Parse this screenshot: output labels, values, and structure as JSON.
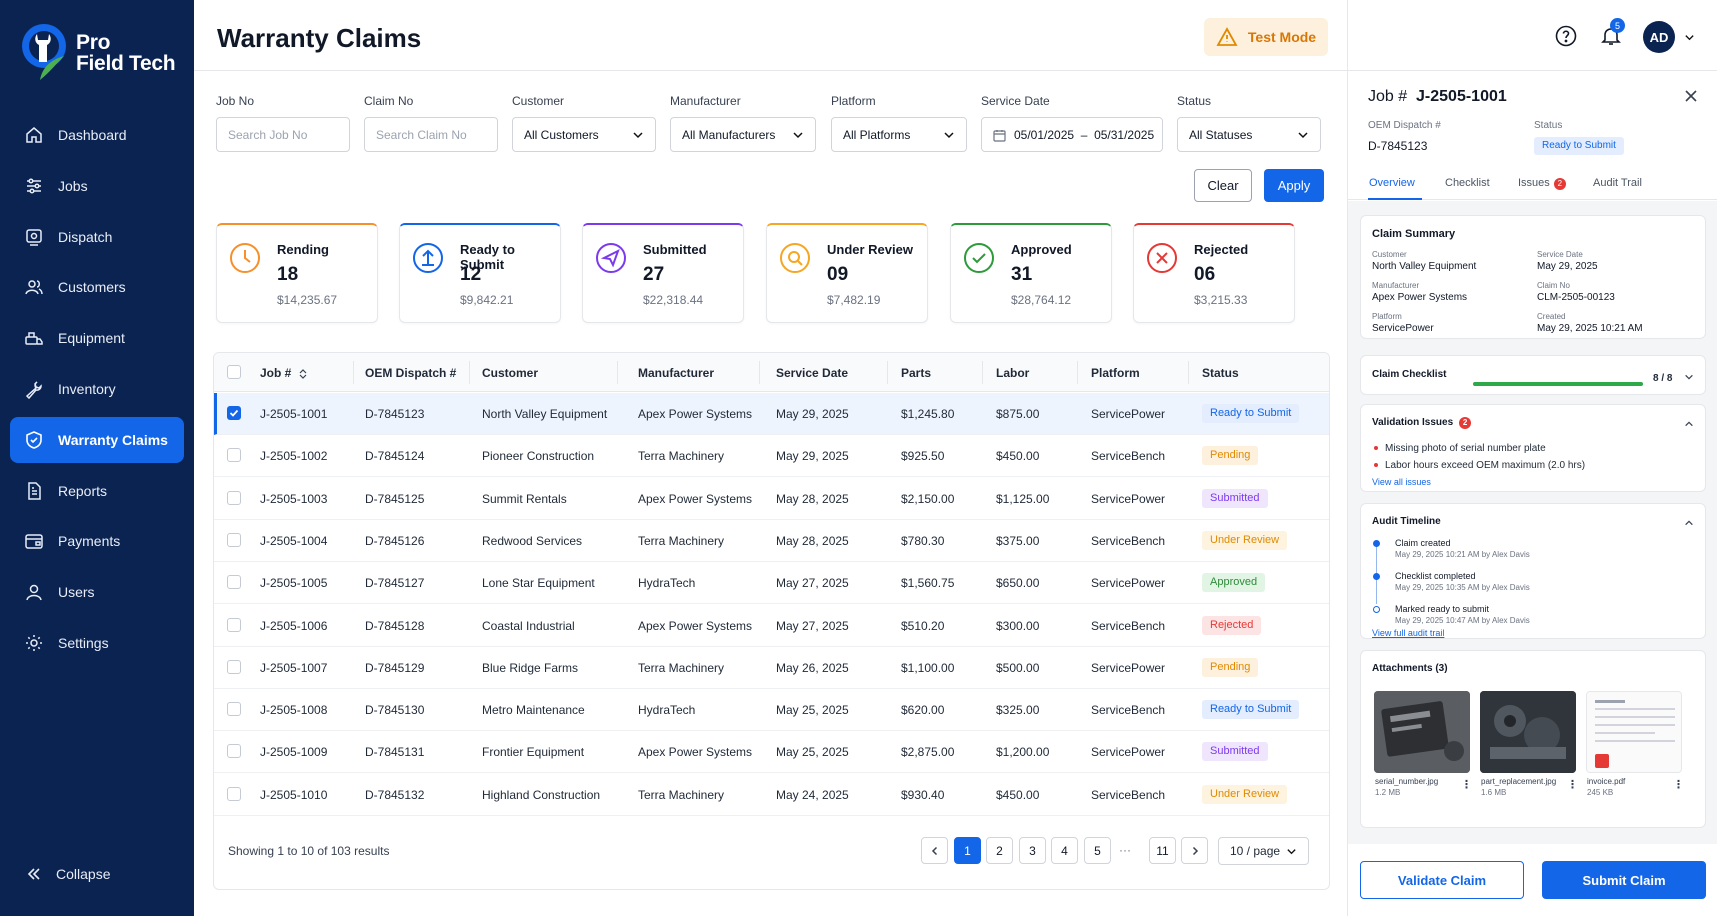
{
  "brand": {
    "line1": "Pro",
    "line2": "Field Tech"
  },
  "sidebar": {
    "items": [
      {
        "label": "Dashboard",
        "icon": "home-icon"
      },
      {
        "label": "Jobs",
        "icon": "sliders-icon"
      },
      {
        "label": "Dispatch",
        "icon": "dispatch-icon"
      },
      {
        "label": "Customers",
        "icon": "customers-icon"
      },
      {
        "label": "Equipment",
        "icon": "equipment-icon"
      },
      {
        "label": "Inventory",
        "icon": "wrench-icon"
      },
      {
        "label": "Warranty Claims",
        "icon": "shield-check-icon",
        "active": true
      },
      {
        "label": "Reports",
        "icon": "report-icon"
      },
      {
        "label": "Payments",
        "icon": "wallet-icon"
      },
      {
        "label": "Users",
        "icon": "user-icon"
      },
      {
        "label": "Settings",
        "icon": "gear-icon"
      }
    ],
    "collapse_label": "Collapse"
  },
  "header": {
    "title": "Warranty Claims",
    "test_mode": "Test Mode"
  },
  "filters": {
    "job_no": {
      "label": "Job No",
      "placeholder": "Search Job No"
    },
    "claim_no": {
      "label": "Claim No",
      "placeholder": "Search Claim No"
    },
    "customer": {
      "label": "Customer",
      "value": "All Customers"
    },
    "manufacturer": {
      "label": "Manufacturer",
      "value": "All Manufacturers"
    },
    "platform": {
      "label": "Platform",
      "value": "All Platforms"
    },
    "service_date": {
      "label": "Service Date",
      "value": "05/01/2025  –  05/31/2025"
    },
    "status": {
      "label": "Status",
      "value": "All Statuses"
    },
    "clear_label": "Clear",
    "apply_label": "Apply"
  },
  "stats": [
    {
      "label": "Rending",
      "count": "18",
      "amount": "$14,235.67",
      "color": "#f5902b",
      "icon": "clock-icon"
    },
    {
      "label": "Ready to Submit",
      "count": "12",
      "amount": "$9,842.21",
      "color": "#1366e8",
      "icon": "upload-icon"
    },
    {
      "label": "Submitted",
      "count": "27",
      "amount": "$22,318.44",
      "color": "#7c3aed",
      "icon": "send-icon"
    },
    {
      "label": "Under Review",
      "count": "09",
      "amount": "$7,482.19",
      "color": "#f5a623",
      "icon": "search-icon"
    },
    {
      "label": "Approved",
      "count": "31",
      "amount": "$28,764.12",
      "color": "#2e9b3a",
      "icon": "check-circle-icon"
    },
    {
      "label": "Rejected",
      "count": "06",
      "amount": "$3,215.33",
      "color": "#e53935",
      "icon": "x-circle-icon"
    }
  ],
  "table": {
    "headers": {
      "job": "Job #",
      "oem": "OEM Dispatch #",
      "customer": "Customer",
      "manufacturer": "Manufacturer",
      "service_date": "Service Date",
      "parts": "Parts",
      "labor": "Labor",
      "platform": "Platform",
      "status": "Status"
    },
    "rows": [
      {
        "job": "J-2505-1001",
        "oem": "D-7845123",
        "customer": "North Valley Equipment",
        "manufacturer": "Apex Power Systems",
        "date": "May 29, 2025",
        "parts": "$1,245.80",
        "labor": "$875.00",
        "platform": "ServicePower",
        "status": "Ready to Submit",
        "selected": true
      },
      {
        "job": "J-2505-1002",
        "oem": "D-7845124",
        "customer": "Pioneer Construction",
        "manufacturer": "Terra Machinery",
        "date": "May 29, 2025",
        "parts": "$925.50",
        "labor": "$450.00",
        "platform": "ServiceBench",
        "status": "Pending"
      },
      {
        "job": "J-2505-1003",
        "oem": "D-7845125",
        "customer": "Summit Rentals",
        "manufacturer": "Apex Power Systems",
        "date": "May 28, 2025",
        "parts": "$2,150.00",
        "labor": "$1,125.00",
        "platform": "ServicePower",
        "status": "Submitted"
      },
      {
        "job": "J-2505-1004",
        "oem": "D-7845126",
        "customer": "Redwood Services",
        "manufacturer": "Terra Machinery",
        "date": "May 28, 2025",
        "parts": "$780.30",
        "labor": "$375.00",
        "platform": "ServiceBench",
        "status": "Under Review"
      },
      {
        "job": "J-2505-1005",
        "oem": "D-7845127",
        "customer": "Lone Star Equipment",
        "manufacturer": "HydraTech",
        "date": "May 27, 2025",
        "parts": "$1,560.75",
        "labor": "$650.00",
        "platform": "ServicePower",
        "status": "Approved"
      },
      {
        "job": "J-2505-1006",
        "oem": "D-7845128",
        "customer": "Coastal Industrial",
        "manufacturer": "Apex Power Systems",
        "date": "May 27, 2025",
        "parts": "$510.20",
        "labor": "$300.00",
        "platform": "ServiceBench",
        "status": "Rejected"
      },
      {
        "job": "J-2505-1007",
        "oem": "D-7845129",
        "customer": "Blue Ridge Farms",
        "manufacturer": "Terra Machinery",
        "date": "May 26, 2025",
        "parts": "$1,100.00",
        "labor": "$500.00",
        "platform": "ServicePower",
        "status": "Pending"
      },
      {
        "job": "J-2505-1008",
        "oem": "D-7845130",
        "customer": "Metro Maintenance",
        "manufacturer": "HydraTech",
        "date": "May 25, 2025",
        "parts": "$620.00",
        "labor": "$325.00",
        "platform": "ServiceBench",
        "status": "Ready to Submit"
      },
      {
        "job": "J-2505-1009",
        "oem": "D-7845131",
        "customer": "Frontier Equipment",
        "manufacturer": "Apex Power Systems",
        "date": "May 25, 2025",
        "parts": "$2,875.00",
        "labor": "$1,200.00",
        "platform": "ServicePower",
        "status": "Submitted"
      },
      {
        "job": "J-2505-1010",
        "oem": "D-7845132",
        "customer": "Highland Construction",
        "manufacturer": "Terra Machinery",
        "date": "May 24, 2025",
        "parts": "$930.40",
        "labor": "$450.00",
        "platform": "ServiceBench",
        "status": "Under Review"
      }
    ],
    "status_styles": {
      "Ready to Submit": {
        "bg": "#e3edfd",
        "fg": "#1366e8"
      },
      "Pending": {
        "bg": "#fdf0dc",
        "fg": "#e08a00"
      },
      "Submitted": {
        "bg": "#efe6fd",
        "fg": "#7c3aed"
      },
      "Under Review": {
        "bg": "#fdf3df",
        "fg": "#e08a00"
      },
      "Approved": {
        "bg": "#e2f5e4",
        "fg": "#2e8b3a"
      },
      "Rejected": {
        "bg": "#fde4e4",
        "fg": "#e53935"
      }
    },
    "footer_text": "Showing 1 to 10 of 103 results",
    "pages": [
      "1",
      "2",
      "3",
      "4",
      "5"
    ],
    "ellipsis": "···",
    "last_page": "11",
    "per_page": "10 / page"
  },
  "topbar": {
    "help_icon": "help-icon",
    "bell_icon": "bell-icon",
    "notif_count": "5",
    "avatar_initials": "AD"
  },
  "detail": {
    "title_prefix": "Job #",
    "title_value": "J-2505-1001",
    "oem_label": "OEM Dispatch #",
    "oem_value": "D-7845123",
    "status_label": "Status",
    "status_value": "Ready to Submit",
    "tabs": {
      "overview": "Overview",
      "checklist": "Checklist",
      "issues": "Issues",
      "issues_count": "2",
      "audit": "Audit Trail"
    },
    "summary": {
      "title": "Claim Summary",
      "customer_label": "Customer",
      "customer": "North Valley Equipment",
      "service_date_label": "Service Date",
      "service_date": "May 29, 2025",
      "manufacturer_label": "Manufacturer",
      "manufacturer": "Apex Power Systems",
      "claim_no_label": "Claim No",
      "claim_no": "CLM-2505-00123",
      "platform_label": "Platform",
      "platform": "ServicePower",
      "created_label": "Created",
      "created": "May 29, 2025 10:21 AM"
    },
    "checklist": {
      "title": "Claim Checklist",
      "progress": "8 / 8",
      "done": 8,
      "total": 8
    },
    "validation": {
      "title": "Validation Issues",
      "count": "2",
      "items": [
        "Missing photo of serial number plate",
        "Labor hours exceed OEM maximum (2.0 hrs)"
      ],
      "link": "View all issues"
    },
    "timeline": {
      "title": "Audit Timeline",
      "events": [
        {
          "title": "Claim created",
          "sub": "May 29, 2025 10:21 AM by Alex Davis"
        },
        {
          "title": "Checklist completed",
          "sub": "May 29, 2025 10:35 AM by Alex Davis"
        },
        {
          "title": "Marked ready to submit",
          "sub": "May 29, 2025 10:47 AM by Alex Davis"
        }
      ],
      "link": "View full audit trail"
    },
    "attachments": {
      "title": "Attachments (3)",
      "files": [
        {
          "name": "serial_number.jpg",
          "size": "1.2 MB"
        },
        {
          "name": "part_replacement.jpg",
          "size": "1.6 MB"
        },
        {
          "name": "invoice.pdf",
          "size": "245 KB"
        }
      ]
    },
    "validate_label": "Validate Claim",
    "submit_label": "Submit Claim"
  }
}
